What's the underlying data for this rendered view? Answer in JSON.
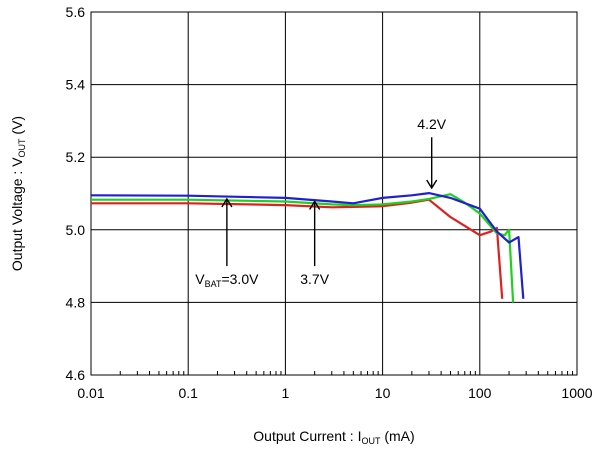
{
  "chart_data": {
    "type": "line",
    "title": "",
    "xscale": "log",
    "xlim": [
      0.01,
      1000
    ],
    "ylim": [
      4.6,
      5.6
    ],
    "grid": true,
    "xticks": [
      "0.01",
      "0.1",
      "1",
      "10",
      "100",
      "1000"
    ],
    "yticks": [
      "4.6",
      "4.8",
      "5.0",
      "5.2",
      "5.4",
      "5.6"
    ],
    "xlabel": {
      "main": "Output Current : I",
      "sub": "OUT",
      "unit": " (mA)"
    },
    "ylabel": {
      "main": "Output Voltage : V",
      "sub": "OUT",
      "unit": " (V)"
    },
    "series": [
      {
        "color": "#e02020",
        "x": [
          0.01,
          0.1,
          1,
          3,
          5,
          10,
          20,
          30,
          50,
          100,
          130,
          150,
          170
        ],
        "y": [
          5.073,
          5.073,
          5.068,
          5.062,
          5.063,
          5.065,
          5.075,
          5.083,
          5.035,
          4.985,
          4.995,
          5.005,
          4.81
        ]
      },
      {
        "color": "#20d020",
        "x": [
          0.01,
          0.1,
          1,
          3,
          5,
          10,
          20,
          30,
          50,
          70,
          100,
          150,
          180,
          200,
          220
        ],
        "y": [
          5.083,
          5.083,
          5.078,
          5.07,
          5.068,
          5.07,
          5.078,
          5.085,
          5.098,
          5.075,
          5.045,
          4.99,
          4.985,
          5.0,
          4.8
        ]
      },
      {
        "color": "#2020d0",
        "x": [
          0.01,
          0.1,
          1,
          3,
          5,
          10,
          20,
          30,
          50,
          100,
          150,
          200,
          250,
          280
        ],
        "y": [
          5.095,
          5.094,
          5.088,
          5.078,
          5.073,
          5.088,
          5.095,
          5.101,
          5.088,
          5.058,
          4.995,
          4.965,
          4.98,
          4.81
        ]
      }
    ],
    "annotations": [
      {
        "label": "V",
        "sub": "BAT",
        "rest": "=3.0V",
        "x": 0.25,
        "y_tip": 5.085,
        "y_tail": 4.9,
        "dir": "up"
      },
      {
        "label": "3.7V",
        "sub": "",
        "rest": "",
        "x": 2.0,
        "y_tip": 5.078,
        "y_tail": 4.9,
        "dir": "up"
      },
      {
        "label": "4.2V",
        "sub": "",
        "rest": "",
        "x": 32,
        "y_tip": 5.115,
        "y_tail": 5.255,
        "dir": "down"
      }
    ]
  }
}
